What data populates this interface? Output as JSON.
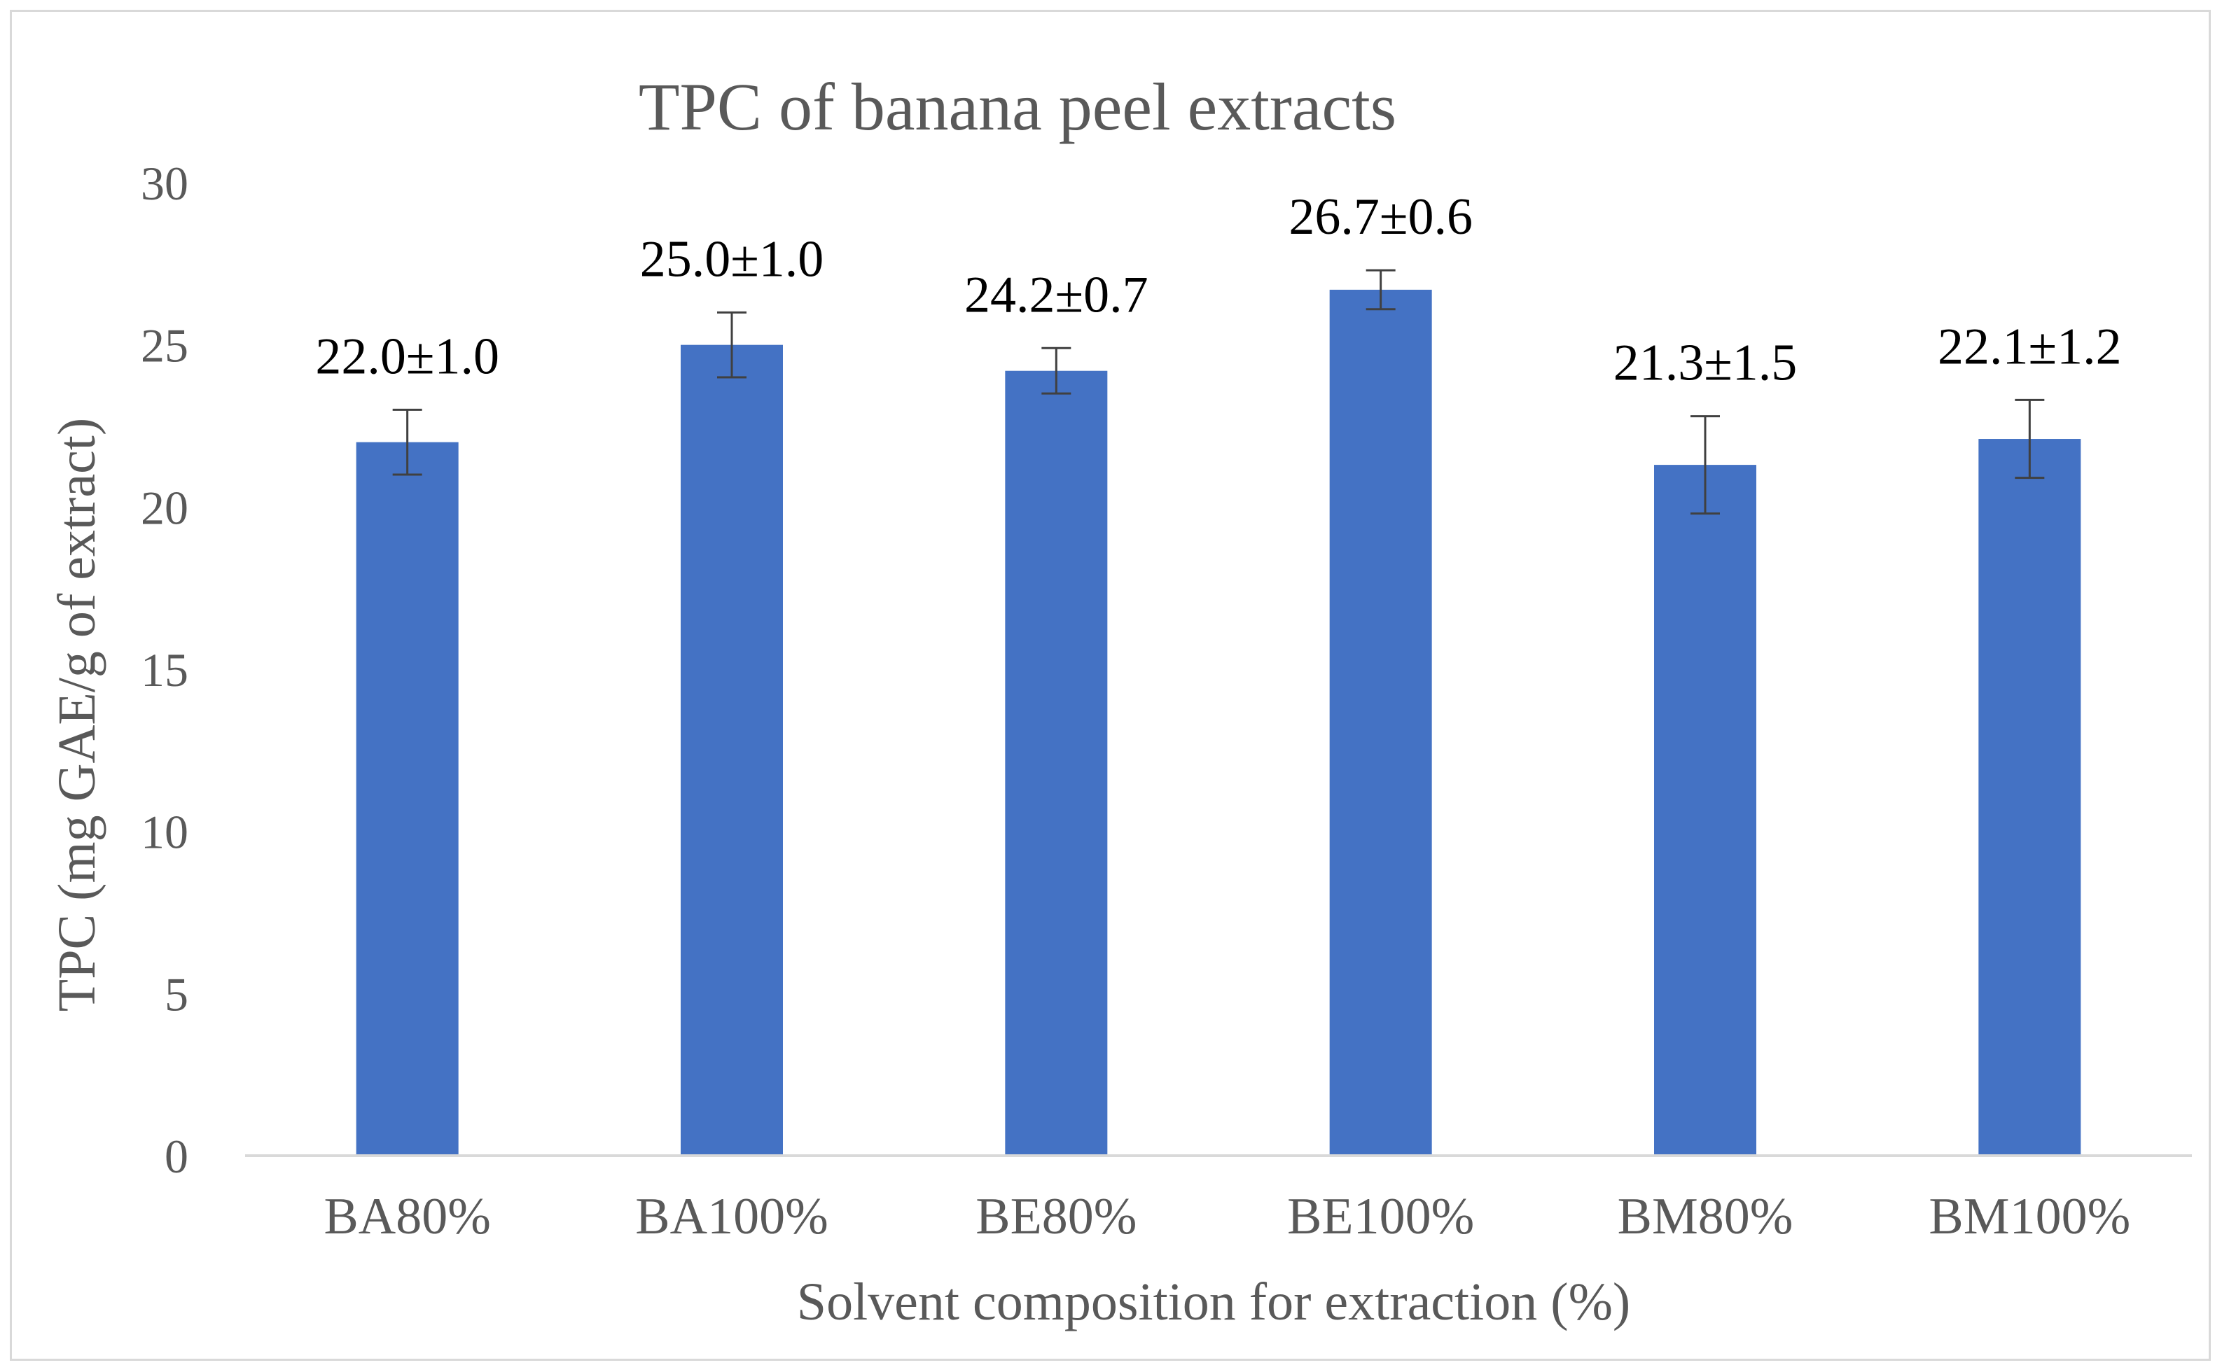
{
  "chart_data": {
    "type": "bar",
    "title": "TPC of banana peel extracts",
    "xlabel": "Solvent composition for extraction  (%)",
    "ylabel": "TPC (mg GAE/g of extract)",
    "ylim": [
      0,
      30
    ],
    "yticks": [
      0,
      5,
      10,
      15,
      20,
      25,
      30
    ],
    "grid": false,
    "legend": "none",
    "categories": [
      "BA80%",
      "BA100%",
      "BE80%",
      "BE100%",
      "BM80%",
      "BM100%"
    ],
    "series": [
      {
        "name": "TPC",
        "color": "#4472c4",
        "values": [
          22.0,
          25.0,
          24.2,
          26.7,
          21.3,
          22.1
        ],
        "errors": [
          1.0,
          1.0,
          0.7,
          0.6,
          1.5,
          1.2
        ],
        "data_labels": [
          "22.0±1.0",
          "25.0±1.0",
          "24.2±0.7",
          "26.7±0.6",
          "21.3±1.5",
          "22.1±1.2"
        ]
      }
    ]
  }
}
